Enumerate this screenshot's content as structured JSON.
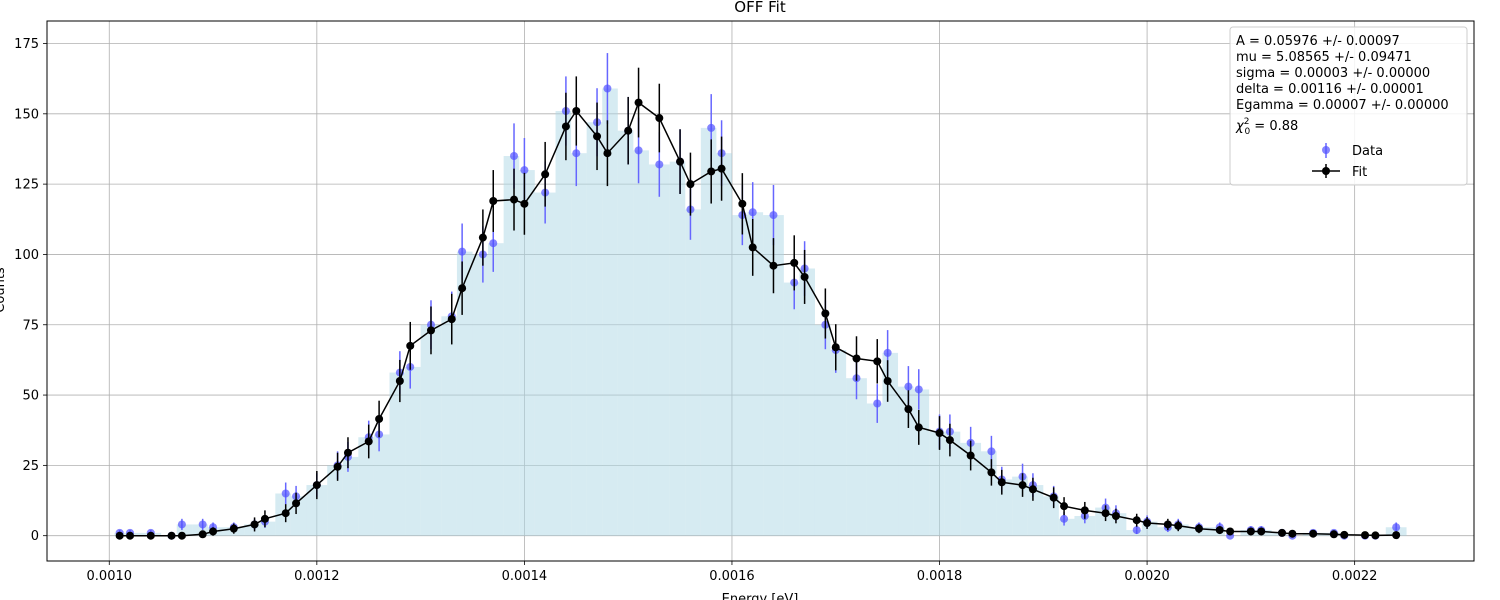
{
  "chart_data": {
    "type": "scatter",
    "title": "OFF Fit",
    "xlabel": "Energy [eV]",
    "ylabel": "Counts",
    "xlim": [
      0.00094,
      0.002315
    ],
    "ylim": [
      -9,
      183
    ],
    "xticks": [
      0.001,
      0.0012,
      0.0014,
      0.0016,
      0.0018,
      0.002,
      0.0022
    ],
    "xtick_labels": [
      "0.0010",
      "0.0012",
      "0.0014",
      "0.0016",
      "0.0018",
      "0.0020",
      "0.0022"
    ],
    "yticks": [
      0,
      25,
      50,
      75,
      100,
      125,
      150,
      175
    ],
    "ytick_labels": [
      "0",
      "25",
      "50",
      "75",
      "100",
      "125",
      "150",
      "175"
    ],
    "grid": true,
    "legend_position": "top-right",
    "annotations": [
      "A = 0.05976 +/- 0.00097",
      "mu = 5.08565 +/- 0.09471",
      "sigma = 0.00003 +/- 0.00000",
      "delta = 0.00116 +/- 0.00001",
      "Egamma = 0.00007 +/- 0.00000"
    ],
    "chi2": {
      "symbol": "χ",
      "sup": "2",
      "sub": "0",
      "text": " = 0.88"
    },
    "x": [
      0.00101,
      0.00102,
      0.00104,
      0.00106,
      0.00107,
      0.00109,
      0.0011,
      0.00112,
      0.00114,
      0.00115,
      0.00117,
      0.00118,
      0.0012,
      0.00122,
      0.00123,
      0.00125,
      0.00126,
      0.00128,
      0.00129,
      0.00131,
      0.00133,
      0.00134,
      0.00136,
      0.00137,
      0.00139,
      0.0014,
      0.00142,
      0.00144,
      0.00145,
      0.00147,
      0.00148,
      0.0015,
      0.00151,
      0.00153,
      0.00155,
      0.00156,
      0.00158,
      0.00159,
      0.00161,
      0.00162,
      0.00164,
      0.00166,
      0.00167,
      0.00169,
      0.0017,
      0.00172,
      0.00174,
      0.00175,
      0.00177,
      0.00178,
      0.0018,
      0.00181,
      0.00183,
      0.00185,
      0.00186,
      0.00188,
      0.00189,
      0.00191,
      0.00192,
      0.00194,
      0.00196,
      0.00197,
      0.00199,
      0.002,
      0.00202,
      0.00203,
      0.00205,
      0.00207,
      0.00208,
      0.0021,
      0.00211,
      0.00213,
      0.00214,
      0.00216,
      0.00218,
      0.00219,
      0.00221,
      0.00222,
      0.00224
    ],
    "series": [
      {
        "name": "Data",
        "color": "#3333ff",
        "style": "points",
        "values": [
          1,
          1,
          1,
          0,
          4,
          4,
          3,
          3,
          4,
          5,
          15,
          14,
          18,
          25,
          28,
          35,
          36,
          58,
          60,
          75,
          78,
          101,
          100,
          104,
          135,
          130,
          122,
          151,
          136,
          147,
          159,
          144,
          137,
          132,
          133,
          116,
          145,
          136,
          114,
          115,
          114,
          90,
          95,
          75,
          66,
          56,
          47,
          65,
          53,
          52,
          37,
          37,
          33,
          30,
          20,
          21,
          18,
          14,
          6,
          7,
          10,
          8,
          2,
          5,
          3,
          4,
          3,
          3,
          0,
          2,
          2,
          1,
          0,
          1,
          1,
          0,
          0,
          0,
          3
        ],
        "errors": [
          1,
          1,
          1,
          0,
          2,
          2,
          1.7,
          1.7,
          2,
          2.2,
          3.9,
          3.7,
          4.2,
          5,
          5.3,
          5.9,
          6,
          7.6,
          7.7,
          8.7,
          8.8,
          10,
          10,
          10.2,
          11.6,
          11.4,
          11,
          12.3,
          11.7,
          12.1,
          12.6,
          12,
          11.7,
          11.5,
          11.5,
          10.8,
          12,
          11.7,
          10.7,
          10.7,
          10.7,
          9.5,
          9.7,
          8.7,
          8.1,
          7.5,
          6.9,
          8.1,
          7.3,
          7.2,
          6.1,
          6.1,
          5.7,
          5.5,
          4.5,
          4.6,
          4.2,
          3.7,
          2.4,
          2.6,
          3.2,
          2.8,
          1.4,
          2.2,
          1.7,
          2,
          1.7,
          1.7,
          0,
          1.4,
          1.4,
          1,
          0,
          1,
          1,
          0,
          0,
          0,
          1.7
        ]
      },
      {
        "name": "Fit",
        "color": "#000000",
        "style": "line+points",
        "values": [
          0,
          0,
          0,
          0,
          0,
          0.5,
          1.5,
          2.5,
          4,
          6,
          8,
          11.5,
          18,
          24.5,
          29.5,
          33.5,
          41.5,
          55,
          67.5,
          73,
          77,
          88,
          106,
          119,
          119.5,
          118,
          128.5,
          145.5,
          151,
          142,
          136,
          144,
          154,
          148.5,
          133,
          125,
          129.5,
          130.5,
          118,
          102.5,
          96,
          97,
          92,
          79,
          67,
          63,
          62,
          55,
          45,
          38.5,
          36.5,
          34,
          28.5,
          22.5,
          19,
          18,
          16.5,
          13.5,
          10.5,
          9,
          8,
          7,
          5.5,
          4.5,
          4,
          3.5,
          2.5,
          2,
          1.5,
          1.5,
          1.5,
          1,
          0.7,
          0.7,
          0.5,
          0.3,
          0.2,
          0.1,
          0.2
        ],
        "errors": [
          0.3,
          0.3,
          0.3,
          0.3,
          0.3,
          1,
          1.5,
          1.8,
          2.5,
          3,
          3.2,
          3.8,
          5,
          5,
          5.5,
          6,
          6.5,
          7.5,
          8.5,
          8.5,
          9,
          9.5,
          10,
          11,
          11,
          11,
          11.5,
          12,
          12.3,
          12,
          11.7,
          12,
          12.4,
          12.2,
          11.5,
          11.2,
          11.4,
          11.4,
          10.9,
          10.1,
          9.8,
          9.8,
          9.6,
          8.9,
          8.2,
          7.9,
          7.9,
          7.4,
          6.7,
          6.2,
          6,
          5.8,
          5.3,
          4.7,
          4.4,
          4.2,
          4.1,
          3.7,
          3.2,
          3,
          2.8,
          2.6,
          2.3,
          2.1,
          2,
          1.9,
          1.6,
          1.4,
          1.2,
          1.2,
          1.2,
          1,
          0.8,
          0.8,
          0.7,
          0.5,
          0.4,
          0.3,
          0.4
        ]
      }
    ],
    "histogram_color": "#add8e6"
  }
}
